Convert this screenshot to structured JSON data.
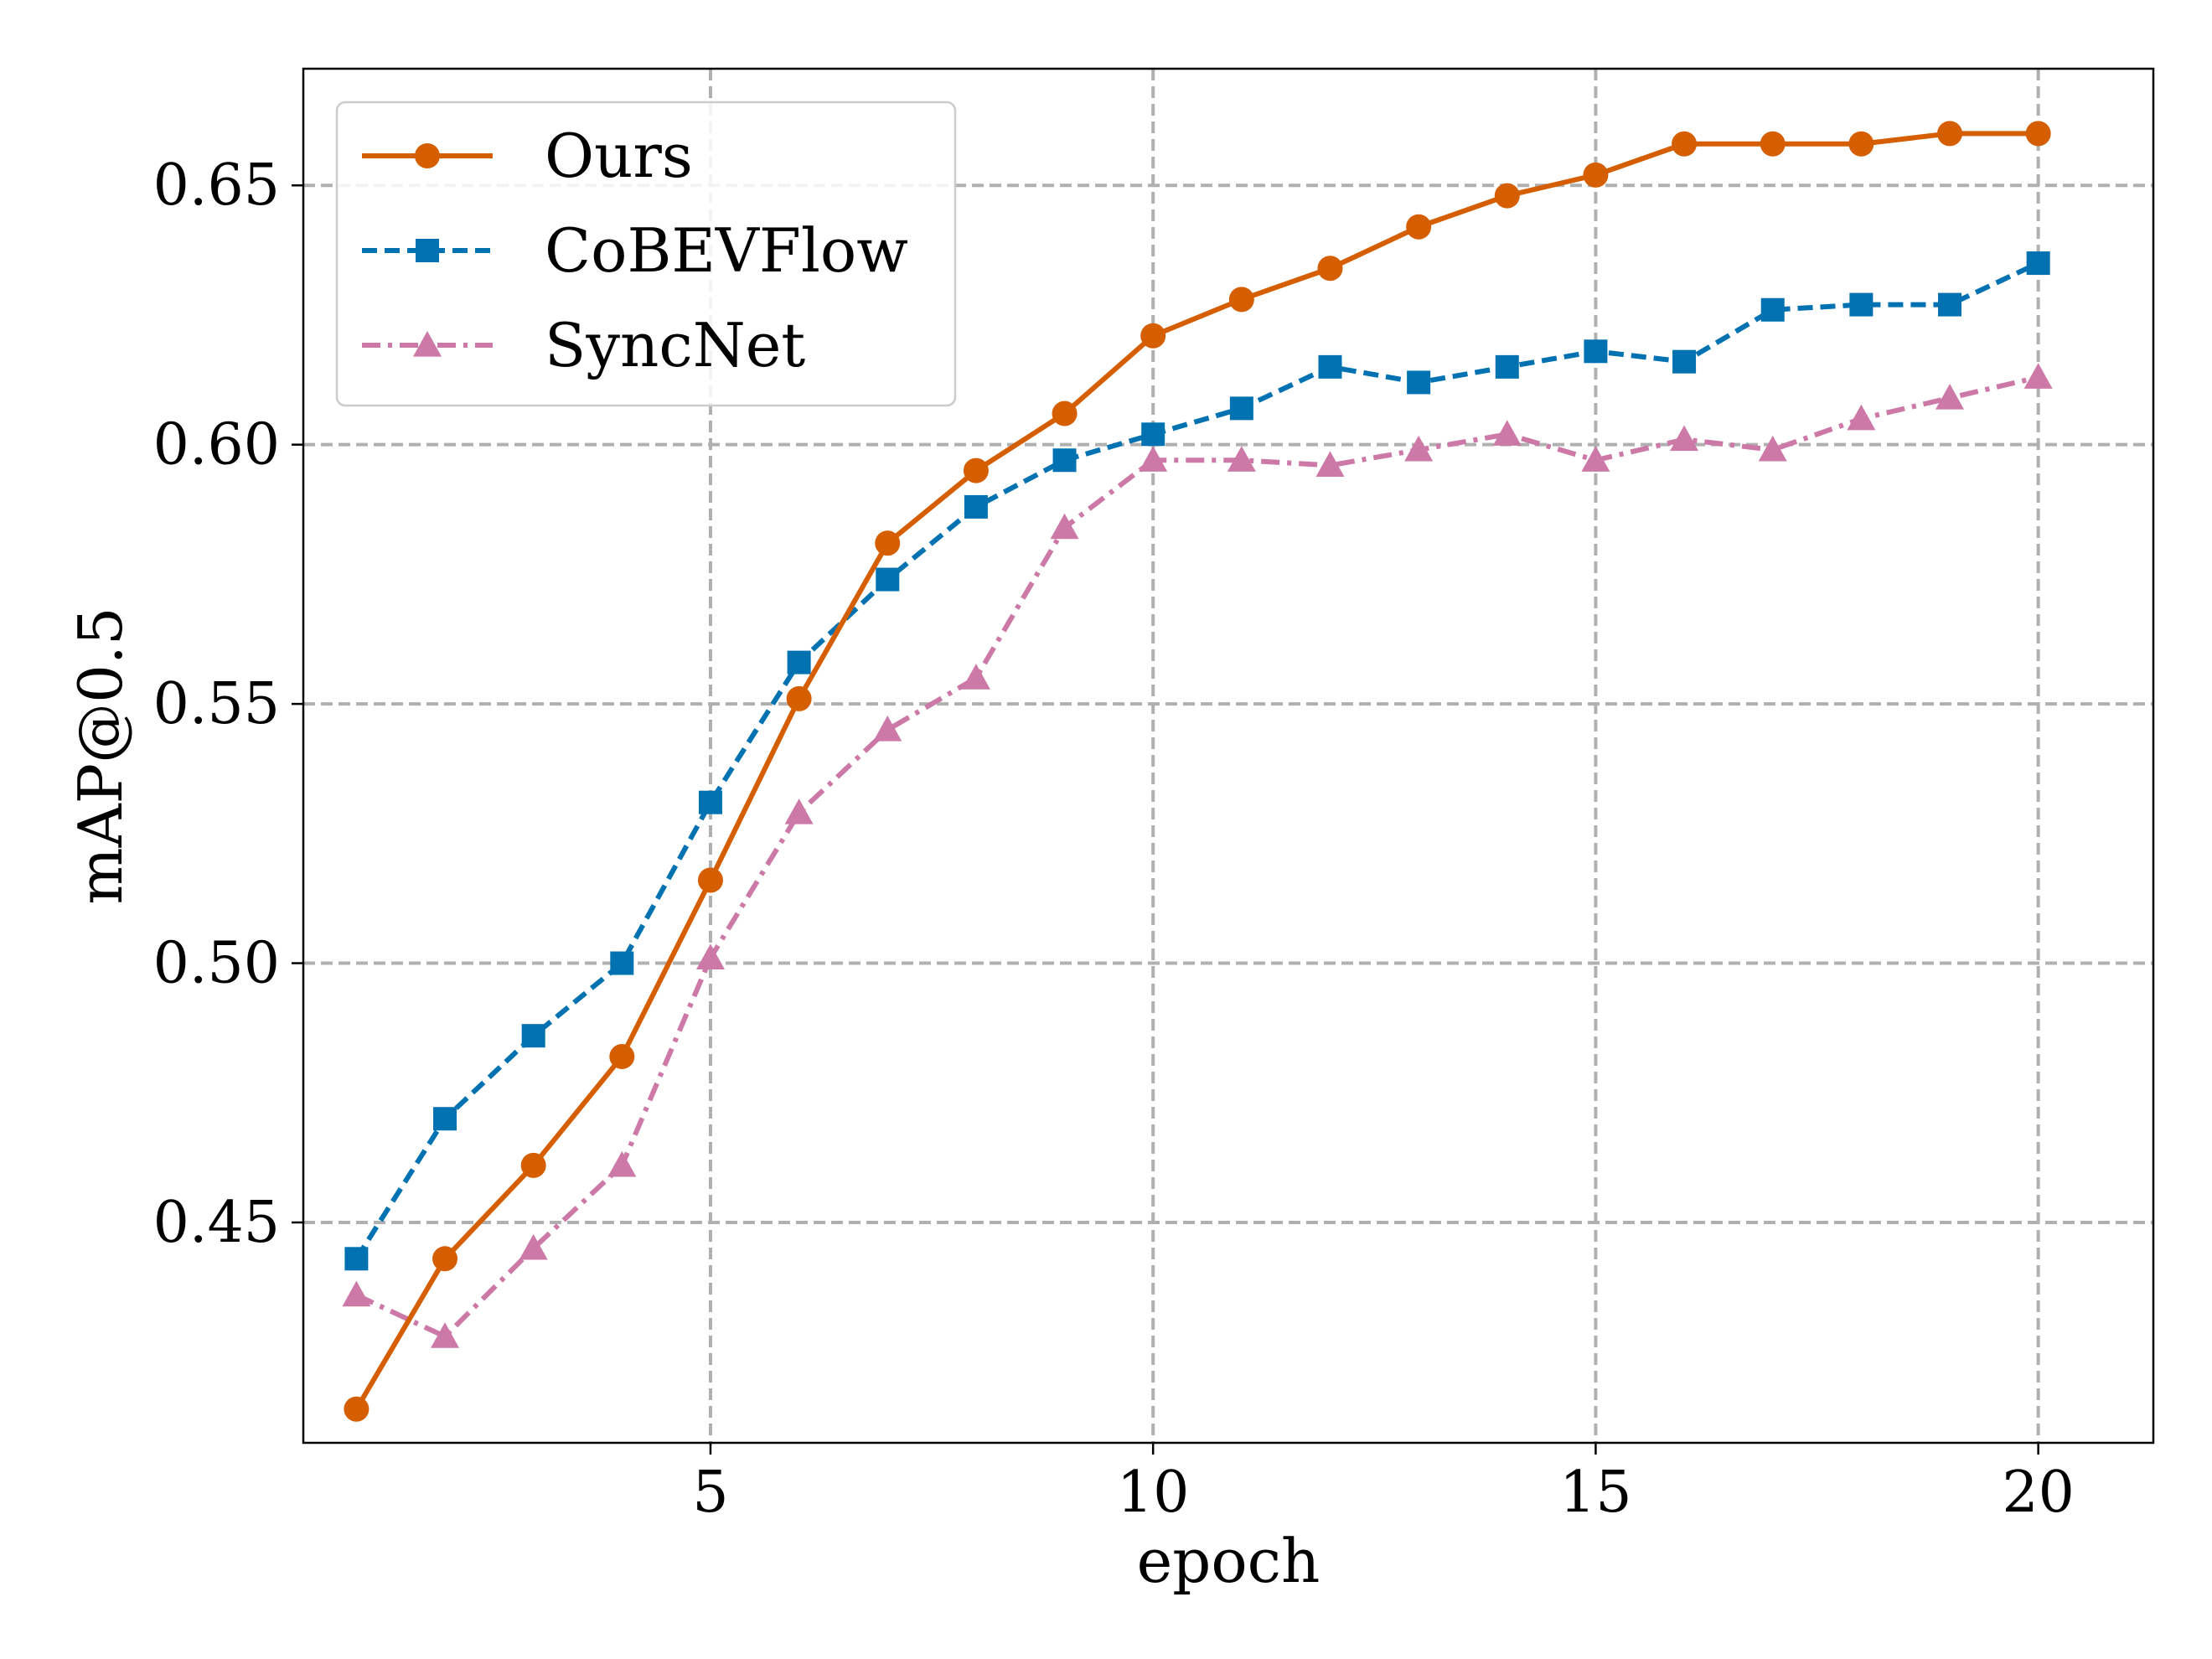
{
  "chart_data": {
    "type": "line",
    "title": "",
    "xlabel": "epoch",
    "ylabel": "mAP@0.5",
    "x": [
      1,
      2,
      3,
      4,
      5,
      6,
      7,
      8,
      9,
      10,
      11,
      12,
      13,
      14,
      15,
      16,
      17,
      18,
      19,
      20
    ],
    "xlim": [
      0.4,
      21.3
    ],
    "ylim": [
      0.4075,
      0.6725
    ],
    "xticks": [
      5,
      10,
      15,
      20
    ],
    "xtick_labels": [
      "5",
      "10",
      "15",
      "20"
    ],
    "yticks": [
      0.45,
      0.5,
      0.55,
      0.6,
      0.65
    ],
    "ytick_labels": [
      "0.45",
      "0.50",
      "0.55",
      "0.60",
      "0.65"
    ],
    "grid": true,
    "legend_position": "top-left",
    "series": [
      {
        "name": "Ours",
        "color": "#d55e00",
        "line_style": "solid",
        "marker": "circle",
        "values": [
          0.414,
          0.443,
          0.461,
          0.482,
          0.516,
          0.551,
          0.581,
          0.595,
          0.606,
          0.621,
          0.628,
          0.634,
          0.642,
          0.648,
          0.652,
          0.658,
          0.658,
          0.658,
          0.66,
          0.66
        ]
      },
      {
        "name": "CoBEVFlow",
        "color": "#0072b2",
        "line_style": "dashed",
        "marker": "square",
        "values": [
          0.443,
          0.47,
          0.486,
          0.5,
          0.531,
          0.558,
          0.574,
          0.588,
          0.597,
          0.602,
          0.607,
          0.615,
          0.612,
          0.615,
          0.618,
          0.616,
          0.626,
          0.627,
          0.627,
          0.635
        ]
      },
      {
        "name": "SyncNet",
        "color": "#cc79a7",
        "line_style": "dashdot",
        "marker": "triangle",
        "values": [
          0.436,
          0.428,
          0.445,
          0.461,
          0.501,
          0.529,
          0.545,
          0.555,
          0.584,
          0.597,
          0.597,
          0.596,
          0.599,
          0.602,
          0.597,
          0.601,
          0.599,
          0.605,
          0.609,
          0.613
        ]
      }
    ]
  }
}
